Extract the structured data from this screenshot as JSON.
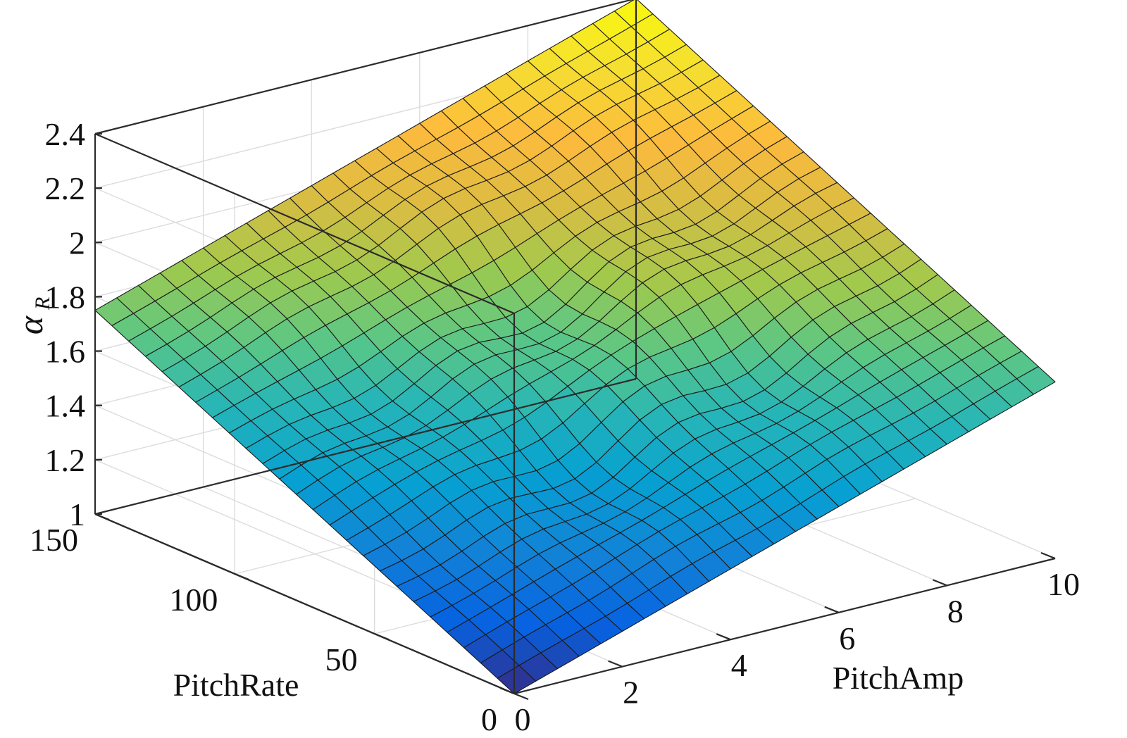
{
  "chart_data": {
    "type": "surface",
    "colormap": "parula",
    "grid": true,
    "view": "3d",
    "xlabel": "PitchAmp",
    "ylabel": "PitchRate",
    "zlabel": "α",
    "zlabel_subscript": "R",
    "xlim": [
      0,
      10
    ],
    "ylim": [
      0,
      150
    ],
    "zlim": [
      1,
      2.4
    ],
    "xticks": [
      "0",
      "2",
      "4",
      "6",
      "8",
      "10"
    ],
    "yticks": [
      "0",
      "50",
      "100",
      "150"
    ],
    "zticks": [
      "1",
      "1.2",
      "1.4",
      "1.6",
      "1.8",
      "2",
      "2.2",
      "2.4"
    ],
    "corner_values": [
      {
        "pitch_amp": 0,
        "pitch_rate": 0,
        "alpha_r": 1.0
      },
      {
        "pitch_amp": 10,
        "pitch_rate": 0,
        "alpha_r": 1.65
      },
      {
        "pitch_amp": 0,
        "pitch_rate": 150,
        "alpha_r": 1.75
      },
      {
        "pitch_amp": 10,
        "pitch_rate": 150,
        "alpha_r": 2.4
      }
    ]
  }
}
